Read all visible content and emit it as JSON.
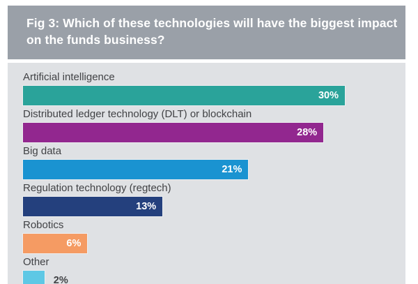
{
  "header": {
    "title_lines": [
      "Fig 3: Which of these technologies will have the biggest impact",
      "on the funds business?"
    ]
  },
  "colors": {
    "header_bg": "#9aa0a8",
    "panel_bg": "#dfe1e4",
    "title_text": "#ffffff",
    "label_text": "#414245",
    "value_text_inside": "#ffffff",
    "value_text_outside": "#414245"
  },
  "chart_data": {
    "type": "bar",
    "orientation": "horizontal",
    "title": "Fig 3: Which of these technologies will have the biggest impact on the funds business?",
    "categories": [
      "Artificial intelligence",
      "Distributed ledger technology (DLT) or blockchain",
      "Big data",
      "Regulation technology (regtech)",
      "Robotics",
      "Other"
    ],
    "values": [
      30,
      28,
      21,
      13,
      6,
      2
    ],
    "value_labels": [
      "30%",
      "28%",
      "21%",
      "13%",
      "6%",
      "2%"
    ],
    "bar_colors": [
      "#2aa39a",
      "#92278f",
      "#1a93d1",
      "#24407d",
      "#f59b63",
      "#5ec8e5"
    ],
    "value_label_positions": [
      "inside",
      "inside",
      "inside",
      "inside",
      "inside",
      "outside"
    ],
    "xlabel": "",
    "ylabel": "",
    "xlim": [
      0,
      35.6
    ],
    "grid": false,
    "legend": false
  }
}
